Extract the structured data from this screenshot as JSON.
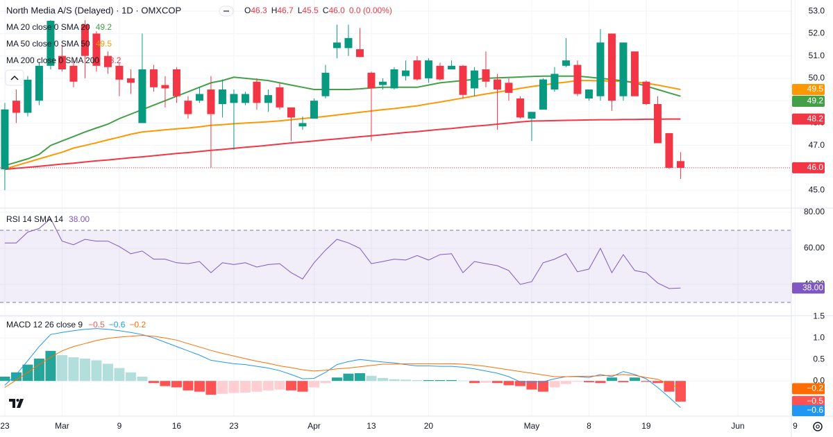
{
  "chart_data": [
    {
      "type": "candlestick",
      "title": "North Media A/S (Delayed) · 1D · OMXCOP",
      "ohlc_legend": [
        {
          "label": "O",
          "value": "46.3"
        },
        {
          "label": "H",
          "value": "46.7"
        },
        {
          "label": "L",
          "value": "45.5"
        },
        {
          "label": "C",
          "value": "46.0"
        }
      ],
      "change": "0.0 (0.00%)",
      "up_color": "#089981",
      "down_color": "#f23645",
      "open": [
        45.93,
        49.0,
        48.46,
        49.0,
        50.56,
        51.0,
        50.56,
        52.4,
        52.0,
        51.0,
        50.56,
        50.0,
        48.0,
        50.4,
        49.7,
        50.4,
        49.0,
        49.0,
        49.5,
        48.85,
        48.9,
        48.9,
        49.85,
        48.9,
        49.6,
        48.7,
        47.85,
        48.2,
        49.2,
        51.35,
        51.35,
        51.3,
        50.25,
        49.7,
        49.55,
        50.1,
        50.8,
        50.0,
        50.56,
        50.4,
        50.56,
        49.55,
        50.4,
        49.95,
        49.8,
        49.1,
        48.2,
        48.6,
        49.5,
        50.56,
        50.6,
        49.1,
        49.2,
        52.0,
        49.2,
        51.2,
        49.85,
        48.85,
        47.55,
        46.3
      ],
      "high": [
        48.9,
        49.5,
        50.1,
        50.7,
        52.6,
        51.5,
        50.8,
        52.6,
        52.1,
        51.2,
        50.7,
        50.4,
        52.0,
        50.6,
        50.1,
        50.5,
        49.2,
        49.6,
        50.1,
        49.95,
        49.5,
        49.4,
        50.0,
        49.5,
        49.8,
        48.7,
        48.3,
        49.1,
        50.6,
        52.4,
        52.4,
        52.25,
        50.3,
        50.0,
        50.5,
        50.8,
        51.0,
        50.9,
        50.7,
        50.8,
        50.6,
        50.5,
        51.2,
        50.2,
        50.0,
        49.2,
        48.5,
        50.0,
        50.5,
        51.8,
        50.8,
        49.5,
        52.2,
        52.0,
        51.6,
        51.2,
        49.9,
        49.2,
        47.55,
        46.7
      ],
      "low": [
        45.0,
        48.0,
        48.3,
        48.8,
        50.4,
        50.3,
        49.6,
        50.0,
        50.3,
        50.2,
        49.2,
        49.3,
        48.0,
        49.4,
        48.7,
        48.9,
        48.2,
        48.9,
        46.0,
        48.25,
        46.8,
        48.8,
        48.6,
        48.5,
        48.6,
        47.2,
        47.7,
        48.2,
        49.1,
        50.9,
        51.0,
        50.95,
        47.2,
        49.5,
        49.5,
        49.9,
        49.9,
        49.8,
        49.9,
        50.4,
        49.1,
        49.2,
        49.6,
        47.7,
        49.0,
        48.2,
        47.2,
        48.6,
        49.4,
        50.5,
        49.2,
        49.0,
        49.0,
        48.55,
        49.0,
        49.2,
        48.8,
        47.1,
        45.95,
        45.5
      ],
      "close": [
        48.61,
        48.46,
        49.94,
        50.56,
        52.57,
        50.4,
        49.85,
        51.0,
        50.56,
        50.5,
        49.94,
        49.8,
        50.4,
        49.6,
        49.55,
        49.2,
        48.4,
        49.3,
        48.4,
        49.5,
        49.3,
        49.3,
        48.9,
        49.25,
        48.7,
        48.25,
        48.0,
        49.0,
        50.25,
        51.6,
        51.8,
        50.95,
        49.55,
        49.85,
        50.4,
        50.35,
        49.95,
        50.8,
        49.95,
        50.56,
        49.26,
        50.35,
        49.85,
        49.5,
        49.35,
        48.25,
        48.5,
        49.95,
        50.2,
        50.8,
        49.3,
        49.5,
        51.6,
        49.0,
        51.6,
        49.2,
        48.85,
        47.1,
        46.0,
        46.0
      ],
      "last_label": "46.0",
      "series": [
        {
          "name": "MA 200 close 0 SMA 200",
          "color": "#f23645",
          "last_label": "48.2",
          "values": [
            45.93,
            45.98,
            46.02,
            46.07,
            46.12,
            46.17,
            46.21,
            46.26,
            46.31,
            46.35,
            46.4,
            46.45,
            46.49,
            46.54,
            46.59,
            46.64,
            46.68,
            46.73,
            46.78,
            46.82,
            46.87,
            46.92,
            46.96,
            47.01,
            47.06,
            47.11,
            47.15,
            47.2,
            47.25,
            47.29,
            47.34,
            47.39,
            47.43,
            47.48,
            47.53,
            47.58,
            47.62,
            47.67,
            47.72,
            47.76,
            47.81,
            47.86,
            47.9,
            47.95,
            48.0,
            48.05,
            48.09,
            48.1,
            48.11,
            48.12,
            48.13,
            48.14,
            48.15,
            48.15,
            48.16,
            48.16,
            48.17,
            48.17,
            48.18,
            48.18
          ]
        },
        {
          "name": "MA 50 close 0 SMA 50",
          "color": "#ff9800",
          "last_label": "49.5",
          "values": [
            45.95,
            46.1,
            46.25,
            46.4,
            46.55,
            46.7,
            46.88,
            47.0,
            47.12,
            47.25,
            47.37,
            47.5,
            47.6,
            47.65,
            47.7,
            47.74,
            47.78,
            47.83,
            47.9,
            47.93,
            47.97,
            48.0,
            48.03,
            48.06,
            48.1,
            48.15,
            48.2,
            48.25,
            48.3,
            48.36,
            48.42,
            48.48,
            48.54,
            48.6,
            48.65,
            48.71,
            48.77,
            48.86,
            48.94,
            49.03,
            49.12,
            49.21,
            49.3,
            49.38,
            49.46,
            49.55,
            49.63,
            49.7,
            49.77,
            49.83,
            49.9,
            49.9,
            49.89,
            49.88,
            49.86,
            49.84,
            49.78,
            49.7,
            49.6,
            49.5
          ]
        },
        {
          "name": "MA 20 close 0 SMA 20",
          "color": "#43a047",
          "last_label": "49.2",
          "values": [
            46.1,
            46.25,
            46.4,
            46.6,
            47.0,
            47.2,
            47.4,
            47.6,
            47.78,
            47.95,
            48.2,
            48.4,
            48.6,
            48.8,
            49.0,
            49.2,
            49.4,
            49.6,
            49.8,
            49.9,
            50.05,
            50.0,
            49.95,
            49.9,
            49.8,
            49.7,
            49.6,
            49.5,
            49.5,
            49.5,
            49.5,
            49.53,
            49.57,
            49.6,
            49.6,
            49.6,
            49.6,
            49.7,
            49.8,
            49.85,
            49.9,
            49.95,
            50.0,
            50.02,
            50.04,
            50.06,
            50.08,
            50.1,
            50.1,
            50.1,
            50.1,
            50.05,
            50.0,
            49.95,
            49.88,
            49.8,
            49.65,
            49.5,
            49.35,
            49.2
          ]
        }
      ],
      "ylim": [
        44.2,
        53.5
      ],
      "yticks": [
        {
          "value": 45,
          "label": "45.0"
        },
        {
          "value": 46,
          "label": "46.0"
        },
        {
          "value": 47,
          "label": "47.0"
        },
        {
          "value": 48,
          "label": "48.0"
        },
        {
          "value": 49,
          "label": "49.0"
        },
        {
          "value": 50,
          "label": "50.0"
        },
        {
          "value": 51,
          "label": "51.0"
        },
        {
          "value": 52,
          "label": "52.0"
        },
        {
          "value": 53,
          "label": "53.0"
        }
      ],
      "xlim": [
        -0.42,
        68.67
      ],
      "xticks": [
        {
          "value": 0,
          "label": "23"
        },
        {
          "value": 5,
          "label": "Mar"
        },
        {
          "value": 10,
          "label": "9"
        },
        {
          "value": 15,
          "label": "16"
        },
        {
          "value": 20,
          "label": "23"
        },
        {
          "value": 27,
          "label": "Apr"
        },
        {
          "value": 32,
          "label": "13"
        },
        {
          "value": 37,
          "label": "20"
        },
        {
          "value": 46,
          "label": "May"
        },
        {
          "value": 51,
          "label": "8"
        },
        {
          "value": 56,
          "label": "19"
        },
        {
          "value": 64,
          "label": "Jun"
        },
        {
          "value": 69,
          "label": "9"
        }
      ],
      "grid": true
    },
    {
      "type": "line",
      "title": "RSI 14 SMA 14",
      "color": "#7e57c2",
      "last_label": "38.00",
      "band": [
        30,
        70
      ],
      "values": [
        63,
        63,
        69,
        71,
        76.5,
        64,
        62,
        65,
        64,
        64,
        61,
        57,
        58.5,
        54,
        54,
        52,
        51.5,
        52.7,
        46.5,
        52,
        51,
        52,
        49.6,
        51,
        51.5,
        46.5,
        43,
        52,
        59,
        65,
        63,
        60,
        51.5,
        52.7,
        54,
        53.5,
        56,
        53.5,
        56.5,
        57,
        46.5,
        52.7,
        51.5,
        50.4,
        47.7,
        40,
        41.5,
        52,
        54,
        57,
        47,
        48.5,
        60,
        46.5,
        56.5,
        47.7,
        46.5,
        40.8,
        37.7,
        38
      ],
      "ylim": [
        22.7,
        82.3
      ],
      "yticks": [
        {
          "value": 80,
          "label": "80.00"
        },
        {
          "value": 60,
          "label": "60.00"
        },
        {
          "value": 40,
          "label": "40.00"
        }
      ],
      "grid": true
    },
    {
      "type": "macd",
      "title": "MACD 12 26 close 9",
      "histogram": {
        "last_label": "−0.5",
        "colors": {
          "grow_above": "#26a69a",
          "fall_above": "#b2dfdb",
          "grow_below": "#ff5252",
          "fall_below": "#ffcdd2"
        },
        "values": [
          0.1,
          0.2,
          0.38,
          0.52,
          0.7,
          0.6,
          0.55,
          0.52,
          0.48,
          0.4,
          0.3,
          0.2,
          0.1,
          -0.05,
          -0.12,
          -0.15,
          -0.22,
          -0.25,
          -0.32,
          -0.3,
          -0.28,
          -0.27,
          -0.25,
          -0.22,
          -0.2,
          -0.22,
          -0.25,
          -0.15,
          -0.05,
          0.08,
          0.17,
          0.18,
          0.12,
          0.07,
          0.04,
          0.03,
          0.02,
          0.02,
          0.02,
          0.02,
          0.01,
          -0.05,
          -0.04,
          -0.05,
          -0.1,
          -0.12,
          -0.2,
          -0.25,
          -0.15,
          -0.07,
          -0.02,
          -0.03,
          -0.05,
          0.08,
          -0.03,
          0.08,
          -0.02,
          -0.05,
          -0.25,
          -0.48
        ]
      },
      "series": [
        {
          "name": "MACD",
          "color": "#2196f3",
          "last_label": "−0.6",
          "values": [
            -0.1,
            0.15,
            0.47,
            0.8,
            1.08,
            1.13,
            1.17,
            1.2,
            1.22,
            1.2,
            1.17,
            1.13,
            1.08,
            1.0,
            0.9,
            0.8,
            0.7,
            0.6,
            0.48,
            0.44,
            0.4,
            0.38,
            0.34,
            0.3,
            0.24,
            0.15,
            0.05,
            0.06,
            0.2,
            0.38,
            0.45,
            0.5,
            0.47,
            0.44,
            0.42,
            0.38,
            0.35,
            0.35,
            0.34,
            0.34,
            0.32,
            0.28,
            0.23,
            0.18,
            0.1,
            -0.02,
            -0.02,
            -0.02,
            0.05,
            0.1,
            0.1,
            0.08,
            0.15,
            0.1,
            0.22,
            0.15,
            0.05,
            -0.15,
            -0.38,
            -0.62
          ]
        },
        {
          "name": "Signal",
          "color": "#ff6d00",
          "last_label": "−0.2",
          "values": [
            -0.15,
            0.02,
            0.2,
            0.38,
            0.55,
            0.7,
            0.8,
            0.87,
            0.94,
            0.99,
            1.02,
            1.04,
            1.06,
            1.04,
            1.0,
            0.95,
            0.87,
            0.79,
            0.71,
            0.64,
            0.58,
            0.52,
            0.46,
            0.41,
            0.35,
            0.31,
            0.26,
            0.23,
            0.25,
            0.28,
            0.3,
            0.33,
            0.36,
            0.39,
            0.39,
            0.4,
            0.4,
            0.4,
            0.4,
            0.4,
            0.39,
            0.37,
            0.34,
            0.3,
            0.26,
            0.22,
            0.18,
            0.14,
            0.1,
            0.1,
            0.11,
            0.11,
            0.12,
            0.13,
            0.15,
            0.13,
            0.08,
            0.04,
            -0.07,
            -0.18
          ]
        }
      ],
      "ylim": [
        -0.82,
        1.52
      ],
      "yticks": [
        1.5,
        {
          "value": 1,
          "label": "1.0"
        },
        {
          "value": 0.5,
          "label": "0.5"
        },
        {
          "value": 0,
          "label": "0.0"
        }
      ],
      "grid": true
    }
  ]
}
